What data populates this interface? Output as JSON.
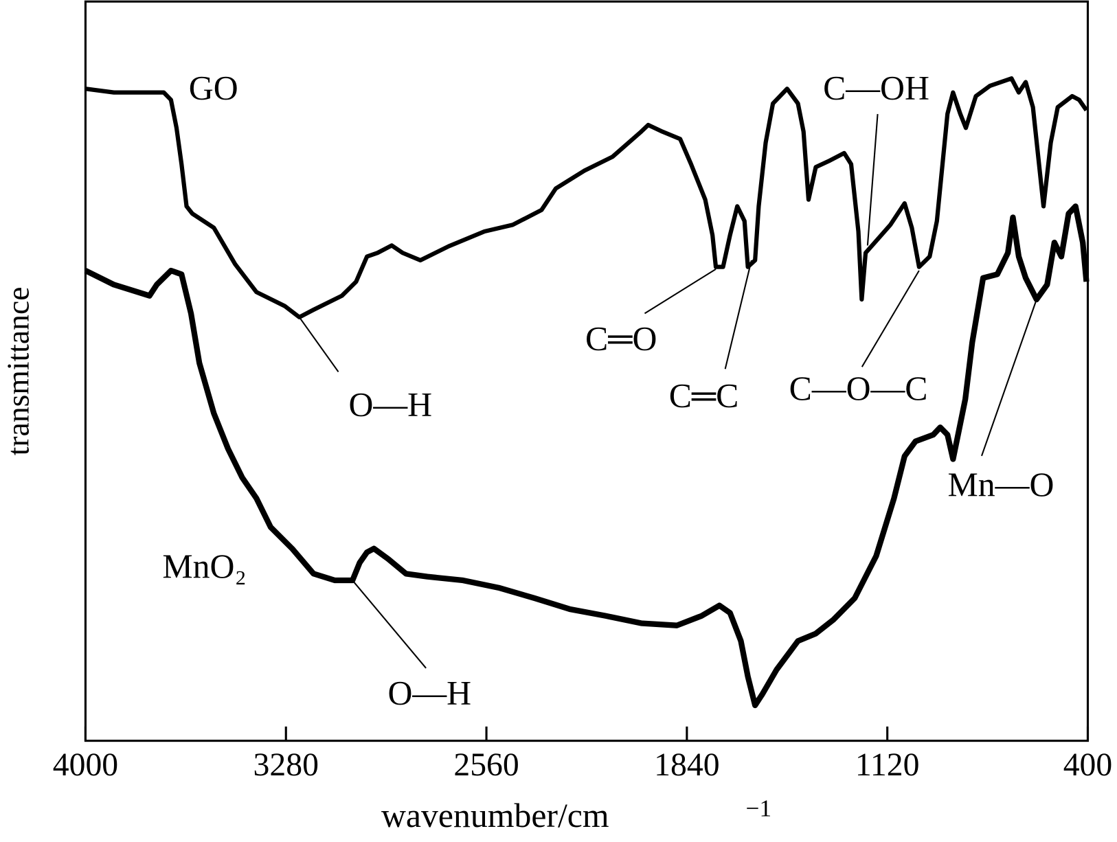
{
  "chart_data": {
    "type": "line",
    "x_label": "wavenumber/cm",
    "x_label_superscript": "−1",
    "y_label": "transmittance",
    "xlim": [
      4000,
      400
    ],
    "xticks": [
      4000,
      3280,
      2560,
      1840,
      1120,
      400
    ],
    "ylim": [
      0,
      100
    ],
    "series": [
      {
        "name": "GO",
        "color": "#000000",
        "x": [
          4000,
          3898,
          3719,
          3693,
          3673,
          3655,
          3637,
          3616,
          3539,
          3463,
          3386,
          3284,
          3232,
          3181,
          3079,
          3028,
          2989,
          2951,
          2900,
          2861,
          2797,
          2695,
          2567,
          2465,
          2362,
          2311,
          2209,
          2107,
          2004,
          1979,
          1928,
          1864,
          1825,
          1774,
          1748,
          1736,
          1710,
          1685,
          1659,
          1633,
          1621,
          1595,
          1582,
          1557,
          1531,
          1480,
          1441,
          1421,
          1403,
          1377,
          1326,
          1275,
          1250,
          1224,
          1212,
          1198,
          1165,
          1109,
          1058,
          1032,
          1006,
          968,
          942,
          904,
          884,
          858,
          838,
          802,
          751,
          674,
          648,
          623,
          597,
          559,
          533,
          508,
          456,
          431,
          405
        ],
        "values": [
          88.2,
          87.7,
          87.7,
          86.7,
          82.9,
          78.0,
          72.3,
          71.3,
          69.4,
          64.5,
          60.7,
          58.8,
          57.3,
          58.3,
          60.2,
          62.1,
          65.5,
          66.0,
          67.0,
          66.0,
          65.0,
          66.9,
          68.9,
          69.8,
          71.8,
          74.7,
          77.1,
          79.0,
          82.4,
          83.3,
          82.4,
          81.4,
          78.0,
          73.2,
          68.4,
          64.1,
          64.1,
          68.4,
          72.3,
          70.3,
          64.1,
          65.0,
          72.3,
          80.9,
          86.2,
          88.2,
          86.2,
          82.4,
          73.2,
          77.6,
          78.5,
          79.5,
          78.0,
          68.9,
          59.7,
          66.0,
          67.4,
          69.8,
          72.7,
          69.4,
          64.1,
          65.5,
          70.3,
          84.8,
          87.7,
          84.8,
          82.9,
          87.2,
          88.6,
          89.6,
          87.7,
          89.1,
          85.7,
          72.3,
          80.9,
          85.7,
          87.2,
          86.7,
          85.3
        ]
      },
      {
        "name": "MnO₂",
        "color": "#000000",
        "x": [
          4000,
          3898,
          3770,
          3744,
          3693,
          3655,
          3621,
          3591,
          3539,
          3488,
          3437,
          3386,
          3335,
          3258,
          3181,
          3104,
          3041,
          3015,
          2989,
          2964,
          2913,
          2849,
          2772,
          2644,
          2516,
          2388,
          2260,
          2132,
          2004,
          1876,
          1787,
          1723,
          1685,
          1646,
          1621,
          1595,
          1569,
          1518,
          1441,
          1377,
          1313,
          1237,
          1160,
          1096,
          1058,
          1019,
          955,
          930,
          904,
          884,
          866,
          840,
          815,
          776,
          725,
          687,
          669,
          648,
          623,
          584,
          546,
          520,
          495,
          469,
          444,
          418,
          405
        ],
        "values": [
          63.6,
          61.7,
          60.2,
          61.7,
          63.6,
          63.1,
          57.8,
          51.1,
          44.3,
          39.5,
          35.6,
          32.8,
          28.9,
          26.0,
          22.6,
          21.7,
          21.7,
          24.1,
          25.5,
          26.0,
          24.6,
          22.6,
          22.2,
          21.7,
          20.7,
          19.3,
          17.8,
          16.9,
          15.9,
          15.6,
          16.9,
          18.3,
          17.3,
          13.5,
          8.7,
          4.8,
          6.3,
          9.6,
          13.5,
          14.5,
          16.4,
          19.3,
          25.0,
          32.8,
          38.5,
          40.5,
          41.4,
          42.4,
          41.4,
          38.1,
          41.4,
          46.2,
          53.9,
          62.6,
          63.1,
          66.0,
          70.8,
          65.5,
          62.6,
          59.7,
          61.7,
          67.4,
          65.5,
          71.3,
          72.3,
          67.4,
          62.1
        ]
      }
    ],
    "annotations": [
      {
        "text": "O—H",
        "x": 3232,
        "y": 57.3
      },
      {
        "text": "C═O",
        "x": 1736,
        "y": 63.8
      },
      {
        "text": "C═C",
        "x": 1608,
        "y": 65.0
      },
      {
        "text": "C—O—C",
        "x": 1006,
        "y": 63.6
      },
      {
        "text": "C—OH",
        "x": 1191,
        "y": 67.0
      },
      {
        "text": "Mn—O",
        "x": 584,
        "y": 59.7
      },
      {
        "text": "O—H",
        "x": 3041,
        "y": 21.7
      }
    ]
  }
}
